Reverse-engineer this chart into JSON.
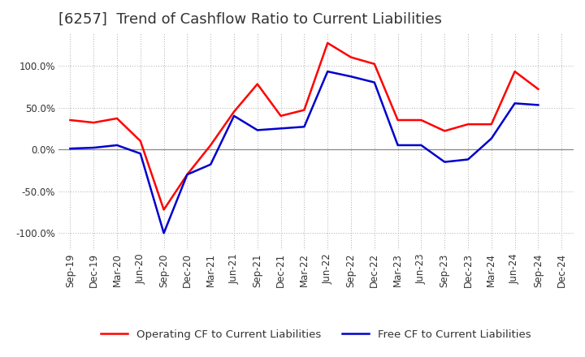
{
  "title": "[6257]  Trend of Cashflow Ratio to Current Liabilities",
  "x_labels": [
    "Sep-19",
    "Dec-19",
    "Mar-20",
    "Jun-20",
    "Sep-20",
    "Dec-20",
    "Mar-21",
    "Jun-21",
    "Sep-21",
    "Dec-21",
    "Mar-22",
    "Jun-22",
    "Sep-22",
    "Dec-22",
    "Mar-23",
    "Jun-23",
    "Sep-23",
    "Dec-23",
    "Mar-24",
    "Jun-24",
    "Sep-24",
    "Dec-24"
  ],
  "operating_cf": [
    35,
    32,
    37,
    10,
    -72,
    -30,
    5,
    45,
    78,
    40,
    47,
    127,
    110,
    102,
    35,
    35,
    22,
    30,
    30,
    93,
    72,
    null
  ],
  "free_cf": [
    1,
    2,
    5,
    -5,
    -100,
    -30,
    -18,
    40,
    23,
    25,
    27,
    93,
    87,
    80,
    5,
    5,
    -15,
    -12,
    13,
    55,
    53,
    null
  ],
  "operating_color": "#ff0000",
  "free_color": "#0000cc",
  "background_color": "#ffffff",
  "plot_bg_color": "#ffffff",
  "grid_color": "#aaaaaa",
  "zero_line_color": "#888888",
  "ylim": [
    -120,
    140
  ],
  "yticks": [
    -100,
    -50,
    0,
    50,
    100
  ],
  "ytick_labels": [
    "-100.0%",
    "-50.0%",
    "0.0%",
    "50.0%",
    "100.0%"
  ],
  "legend_op": "Operating CF to Current Liabilities",
  "legend_free": "Free CF to Current Liabilities",
  "title_fontsize": 13,
  "title_color": "#333333",
  "axis_fontsize": 8.5,
  "legend_fontsize": 9.5
}
